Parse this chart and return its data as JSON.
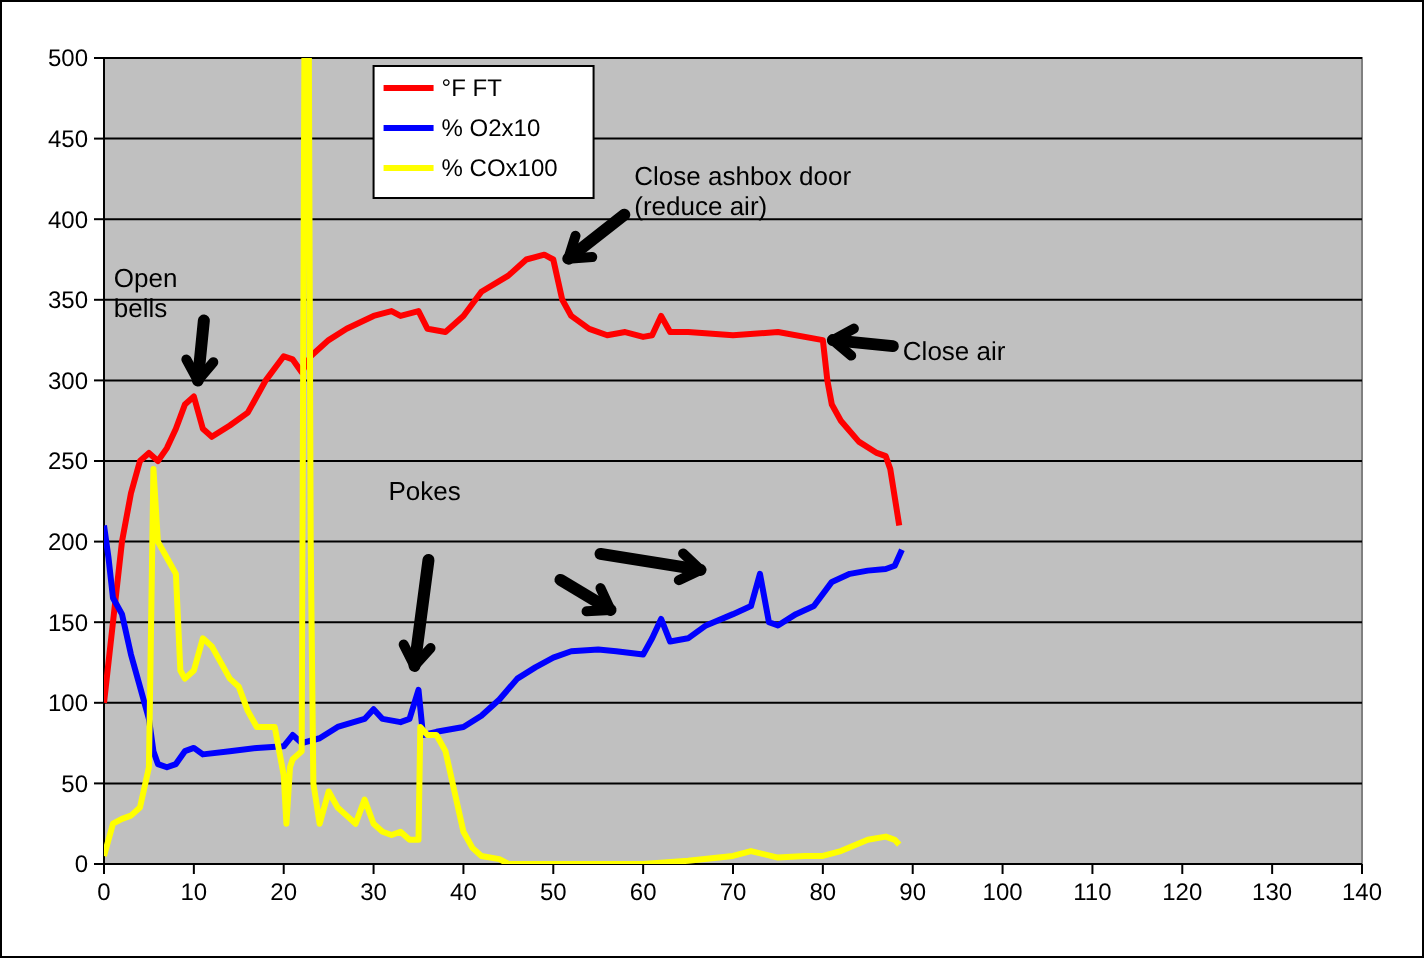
{
  "chart_data": {
    "type": "line",
    "xlim": [
      0,
      140
    ],
    "xticks": [
      0,
      10,
      20,
      30,
      40,
      50,
      60,
      70,
      80,
      90,
      100,
      110,
      120,
      130,
      140
    ],
    "ylim": [
      0,
      500
    ],
    "yticks": [
      0,
      50,
      100,
      150,
      200,
      250,
      300,
      350,
      400,
      450,
      500
    ],
    "grid": "y",
    "legend": "top left",
    "marker": "none",
    "line_style": "solid",
    "series": [
      {
        "name": "°F FT",
        "color": "#ff0000",
        "x": [
          0,
          1,
          2,
          3,
          4,
          5,
          6,
          7,
          8,
          9,
          10,
          11,
          12,
          14,
          16,
          18,
          20,
          21,
          22,
          23,
          25,
          27,
          30,
          32,
          33,
          35,
          36,
          38,
          40,
          42,
          45,
          47,
          49,
          50,
          51,
          52,
          54,
          56,
          58,
          60,
          61,
          62,
          63,
          65,
          70,
          75,
          80,
          80.5,
          81,
          82,
          84,
          86,
          87,
          87.5,
          88.5
        ],
        "values": [
          100,
          150,
          200,
          230,
          250,
          255,
          250,
          258,
          270,
          285,
          290,
          270,
          265,
          272,
          280,
          300,
          315,
          313,
          305,
          315,
          325,
          332,
          340,
          343,
          340,
          343,
          332,
          330,
          340,
          355,
          365,
          375,
          378,
          375,
          350,
          340,
          332,
          328,
          330,
          327,
          328,
          340,
          330,
          330,
          328,
          330,
          325,
          300,
          285,
          275,
          262,
          255,
          253,
          245,
          210
        ]
      },
      {
        "name": "% O2x10",
        "color": "#0000ff",
        "x": [
          0,
          0.5,
          1,
          2,
          3,
          4,
          5,
          5.5,
          6,
          7,
          8,
          9,
          10,
          11,
          14,
          17,
          20,
          21,
          22,
          24,
          26,
          29,
          30,
          31,
          33,
          34,
          35,
          35.5,
          37,
          40,
          42,
          44,
          46,
          48,
          50,
          52,
          55,
          57,
          60,
          61,
          62,
          63,
          65,
          67,
          70,
          72,
          73,
          74,
          75,
          77,
          79,
          81,
          83,
          85,
          87,
          88,
          88.8
        ],
        "values": [
          210,
          190,
          165,
          155,
          130,
          110,
          90,
          70,
          62,
          60,
          62,
          70,
          72,
          68,
          70,
          72,
          73,
          80,
          75,
          78,
          85,
          90,
          96,
          90,
          88,
          90,
          108,
          80,
          82,
          85,
          92,
          102,
          115,
          122,
          128,
          132,
          133,
          132,
          130,
          140,
          152,
          138,
          140,
          148,
          155,
          160,
          180,
          150,
          148,
          155,
          160,
          175,
          180,
          182,
          183,
          185,
          195
        ]
      },
      {
        "name": "% COx100",
        "color": "#ffff00",
        "x": [
          0,
          1,
          2,
          3,
          4,
          5,
          5.5,
          6,
          7,
          8,
          8.5,
          9,
          10,
          11,
          12,
          14,
          15,
          16,
          17,
          18,
          19,
          20,
          20.3,
          20.7,
          21,
          22,
          22.3,
          22.8,
          23,
          23.3,
          24,
          25,
          26,
          27,
          28,
          29,
          30,
          31,
          32,
          33,
          34,
          35,
          35.2,
          36,
          37,
          38,
          39,
          40,
          41,
          42,
          44,
          45,
          60,
          65,
          70,
          72,
          75,
          78,
          80,
          82,
          85,
          87,
          88,
          88.5
        ],
        "values": [
          5,
          25,
          28,
          30,
          35,
          60,
          245,
          200,
          190,
          180,
          120,
          115,
          120,
          140,
          135,
          115,
          110,
          95,
          85,
          85,
          85,
          55,
          25,
          60,
          65,
          70,
          500,
          500,
          200,
          50,
          25,
          45,
          35,
          30,
          25,
          40,
          25,
          20,
          18,
          20,
          15,
          15,
          85,
          80,
          80,
          70,
          45,
          20,
          10,
          5,
          3,
          0,
          0,
          2,
          5,
          8,
          4,
          5,
          5,
          8,
          15,
          17,
          15,
          12
        ]
      }
    ],
    "annotations": [
      {
        "text": "Open\nbells",
        "x": 10,
        "y": 290
      },
      "Pokes",
      "Close ashbox door\n(reduce air)",
      {
        "text": "Close air",
        "x": 80,
        "y": 325
      }
    ]
  }
}
